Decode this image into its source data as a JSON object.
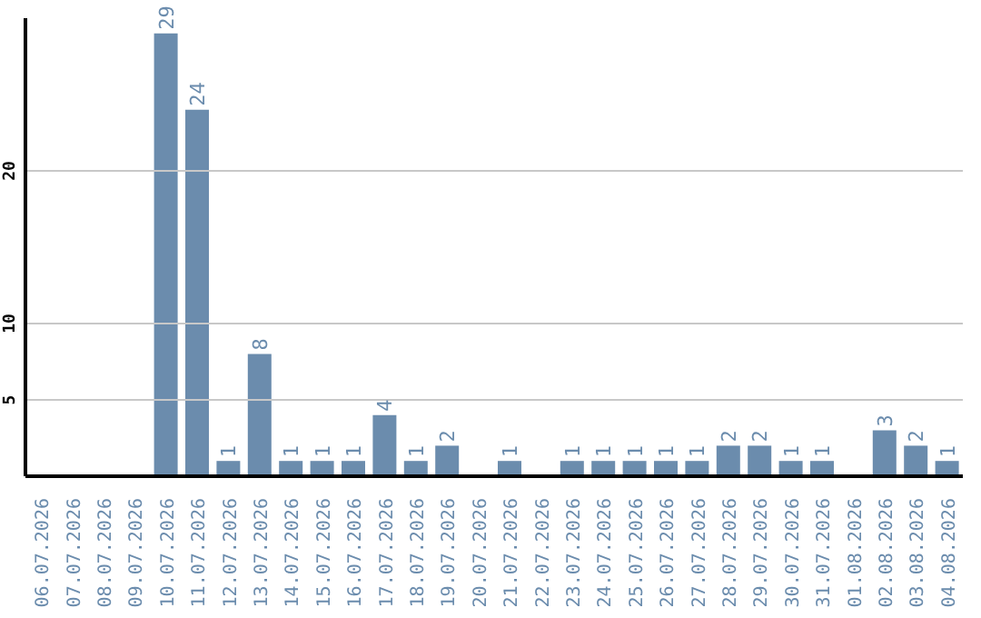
{
  "chart_data": {
    "type": "bar",
    "categories": [
      "06.07.2026",
      "07.07.2026",
      "08.07.2026",
      "09.07.2026",
      "10.07.2026",
      "11.07.2026",
      "12.07.2026",
      "13.07.2026",
      "14.07.2026",
      "15.07.2026",
      "16.07.2026",
      "17.07.2026",
      "18.07.2026",
      "19.07.2026",
      "20.07.2026",
      "21.07.2026",
      "22.07.2026",
      "23.07.2026",
      "24.07.2026",
      "25.07.2026",
      "26.07.2026",
      "27.07.2026",
      "28.07.2026",
      "29.07.2026",
      "30.07.2026",
      "31.07.2026",
      "01.08.2026",
      "02.08.2026",
      "03.08.2026",
      "04.08.2026"
    ],
    "values": [
      0,
      0,
      0,
      0,
      29,
      24,
      1,
      8,
      1,
      1,
      1,
      4,
      1,
      2,
      0,
      1,
      0,
      1,
      1,
      1,
      1,
      1,
      2,
      2,
      1,
      1,
      0,
      3,
      2,
      1
    ],
    "value_labels": [
      null,
      null,
      null,
      null,
      "29",
      "24",
      "1",
      "8",
      "1",
      "1",
      "1",
      "4",
      "1",
      "2",
      null,
      "1",
      null,
      "1",
      "1",
      "1",
      "1",
      "1",
      "2",
      "2",
      "1",
      "1",
      null,
      "3",
      "2",
      "1"
    ],
    "color": "#6b8cad",
    "ylim": [
      0,
      30
    ],
    "yticks": [
      5,
      10,
      20
    ],
    "grid": "y"
  }
}
